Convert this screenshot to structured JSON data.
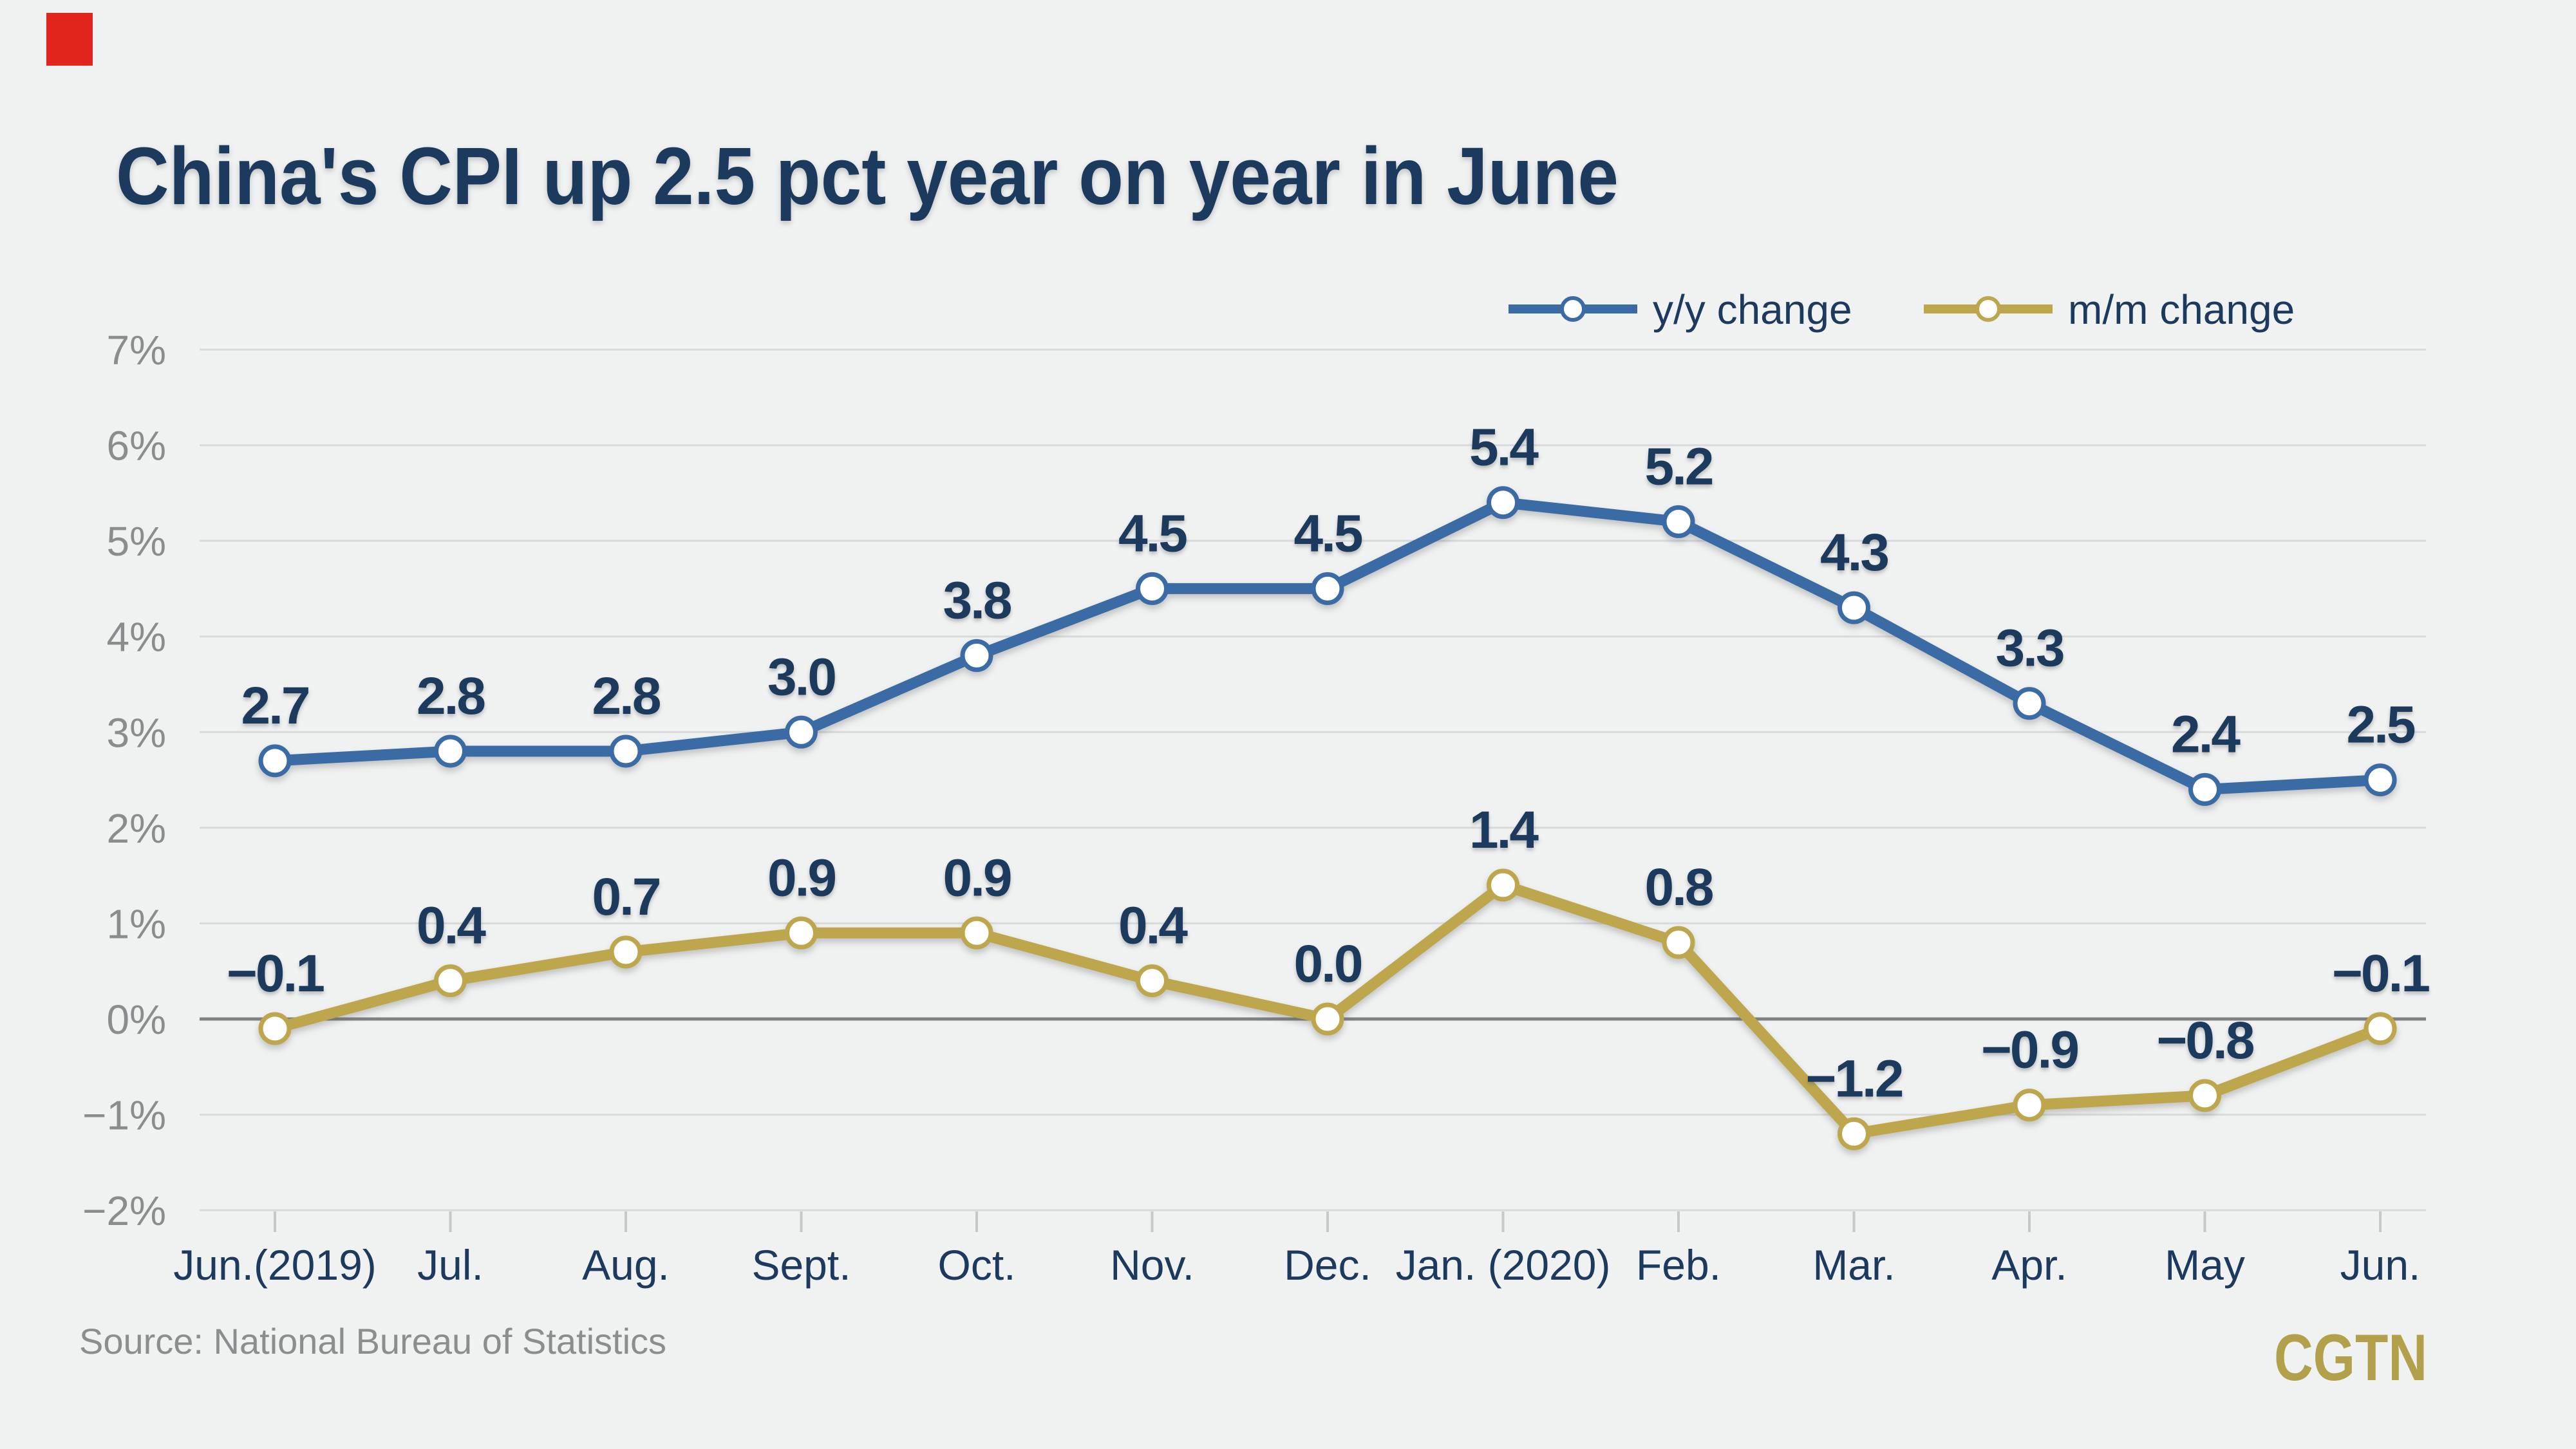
{
  "page": {
    "background": "#f0f1f1",
    "brand_red": "#e1251c"
  },
  "title": {
    "text": "China's CPI up 2.5 pct year on year in June",
    "color": "#1b3a5d"
  },
  "legend": {
    "items": [
      {
        "label": "y/y change",
        "color": "#3a6ba5"
      },
      {
        "label": "m/m change",
        "color": "#bda64c"
      }
    ]
  },
  "source": {
    "text": "Source: National Bureau of Statistics"
  },
  "logo": {
    "text": "CGTN",
    "color": "#b3a04b"
  },
  "chart_data": {
    "type": "line",
    "title": "China's CPI up 2.5 pct year on year in June",
    "categories": [
      "Jun.(2019)",
      "Jul.",
      "Aug.",
      "Sept.",
      "Oct.",
      "Nov.",
      "Dec.",
      "Jan. (2020)",
      "Feb.",
      "Mar.",
      "Apr.",
      "May",
      "Jun."
    ],
    "series": [
      {
        "name": "y/y change",
        "color": "#3a6ba5",
        "values": [
          2.7,
          2.8,
          2.8,
          3.0,
          3.8,
          4.5,
          4.5,
          5.4,
          5.2,
          4.3,
          3.3,
          2.4,
          2.5
        ]
      },
      {
        "name": "m/m change",
        "color": "#bda64c",
        "values": [
          -0.1,
          0.4,
          0.7,
          0.9,
          0.9,
          0.4,
          0.0,
          1.4,
          0.8,
          -1.2,
          -0.9,
          -0.8,
          -0.1
        ]
      }
    ],
    "unit": "%",
    "ylim": [
      -2,
      7
    ],
    "y_ticks": [
      {
        "value": 7,
        "label": "7%"
      },
      {
        "value": 6,
        "label": "6%"
      },
      {
        "value": 5,
        "label": "5%"
      },
      {
        "value": 4,
        "label": "4%"
      },
      {
        "value": 3,
        "label": "3%"
      },
      {
        "value": 2,
        "label": "2%"
      },
      {
        "value": 1,
        "label": "1%"
      },
      {
        "value": 0,
        "label": "0%"
      },
      {
        "value": -1,
        "label": "−1%"
      },
      {
        "value": -2,
        "label": "−2%"
      }
    ],
    "grid": true,
    "zero_line": true,
    "legend_position": "top-right",
    "colors": {
      "gridline": "#d9dadb",
      "zero_line": "#7f8184",
      "axis_tick": "#c6c8ca",
      "y_label": "#8a8c8e",
      "x_label": "#1b3a5d",
      "data_label": "#1b3a5d"
    }
  }
}
